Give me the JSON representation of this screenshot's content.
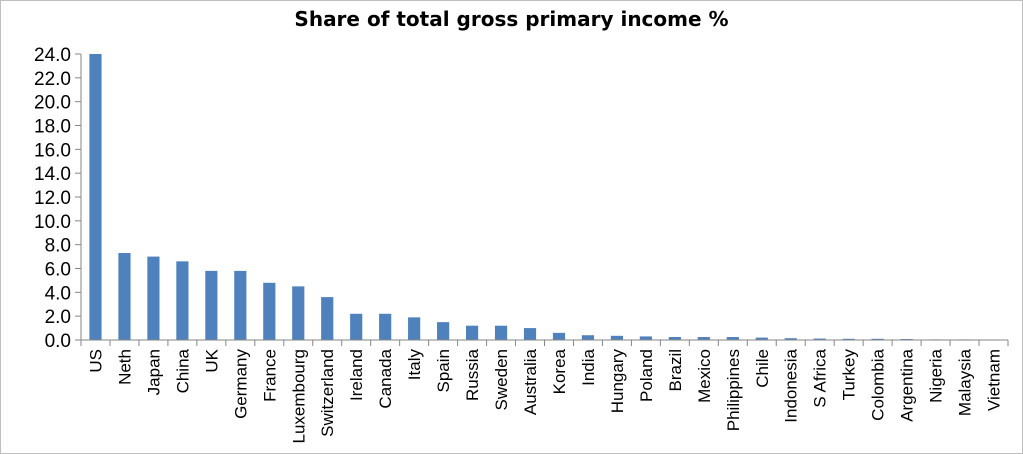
{
  "chart_data": {
    "type": "bar",
    "title": "Share of total gross primary income %",
    "xlabel": "",
    "ylabel": "",
    "ylim": [
      0,
      24
    ],
    "y_ticks": [
      "0.0",
      "2.0",
      "4.0",
      "6.0",
      "8.0",
      "10.0",
      "12.0",
      "14.0",
      "16.0",
      "18.0",
      "20.0",
      "22.0",
      "24.0"
    ],
    "grid": false,
    "legend": "none",
    "bar_color": "#4f81bd",
    "categories": [
      "US",
      "Neth",
      "Japan",
      "China",
      "UK",
      "Germany",
      "France",
      "Luxembourg",
      "Switzerland",
      "Ireland",
      "Canada",
      "Italy",
      "Spain",
      "Russia",
      "Sweden",
      "Australia",
      "Korea",
      "India",
      "Hungary",
      "Poland",
      "Brazil",
      "Mexico",
      "Philippines",
      "Chile",
      "Indonesia",
      "S Africa",
      "Turkey",
      "Colombia",
      "Argentina",
      "Nigeria",
      "Malaysia",
      "Vietnam"
    ],
    "values": [
      24.0,
      7.3,
      7.0,
      6.6,
      5.8,
      5.8,
      4.8,
      4.5,
      3.6,
      2.2,
      2.2,
      1.9,
      1.5,
      1.2,
      1.2,
      1.0,
      0.6,
      0.4,
      0.35,
      0.3,
      0.25,
      0.25,
      0.25,
      0.2,
      0.15,
      0.12,
      0.1,
      0.1,
      0.08,
      0.05,
      0.05,
      0.03
    ]
  }
}
